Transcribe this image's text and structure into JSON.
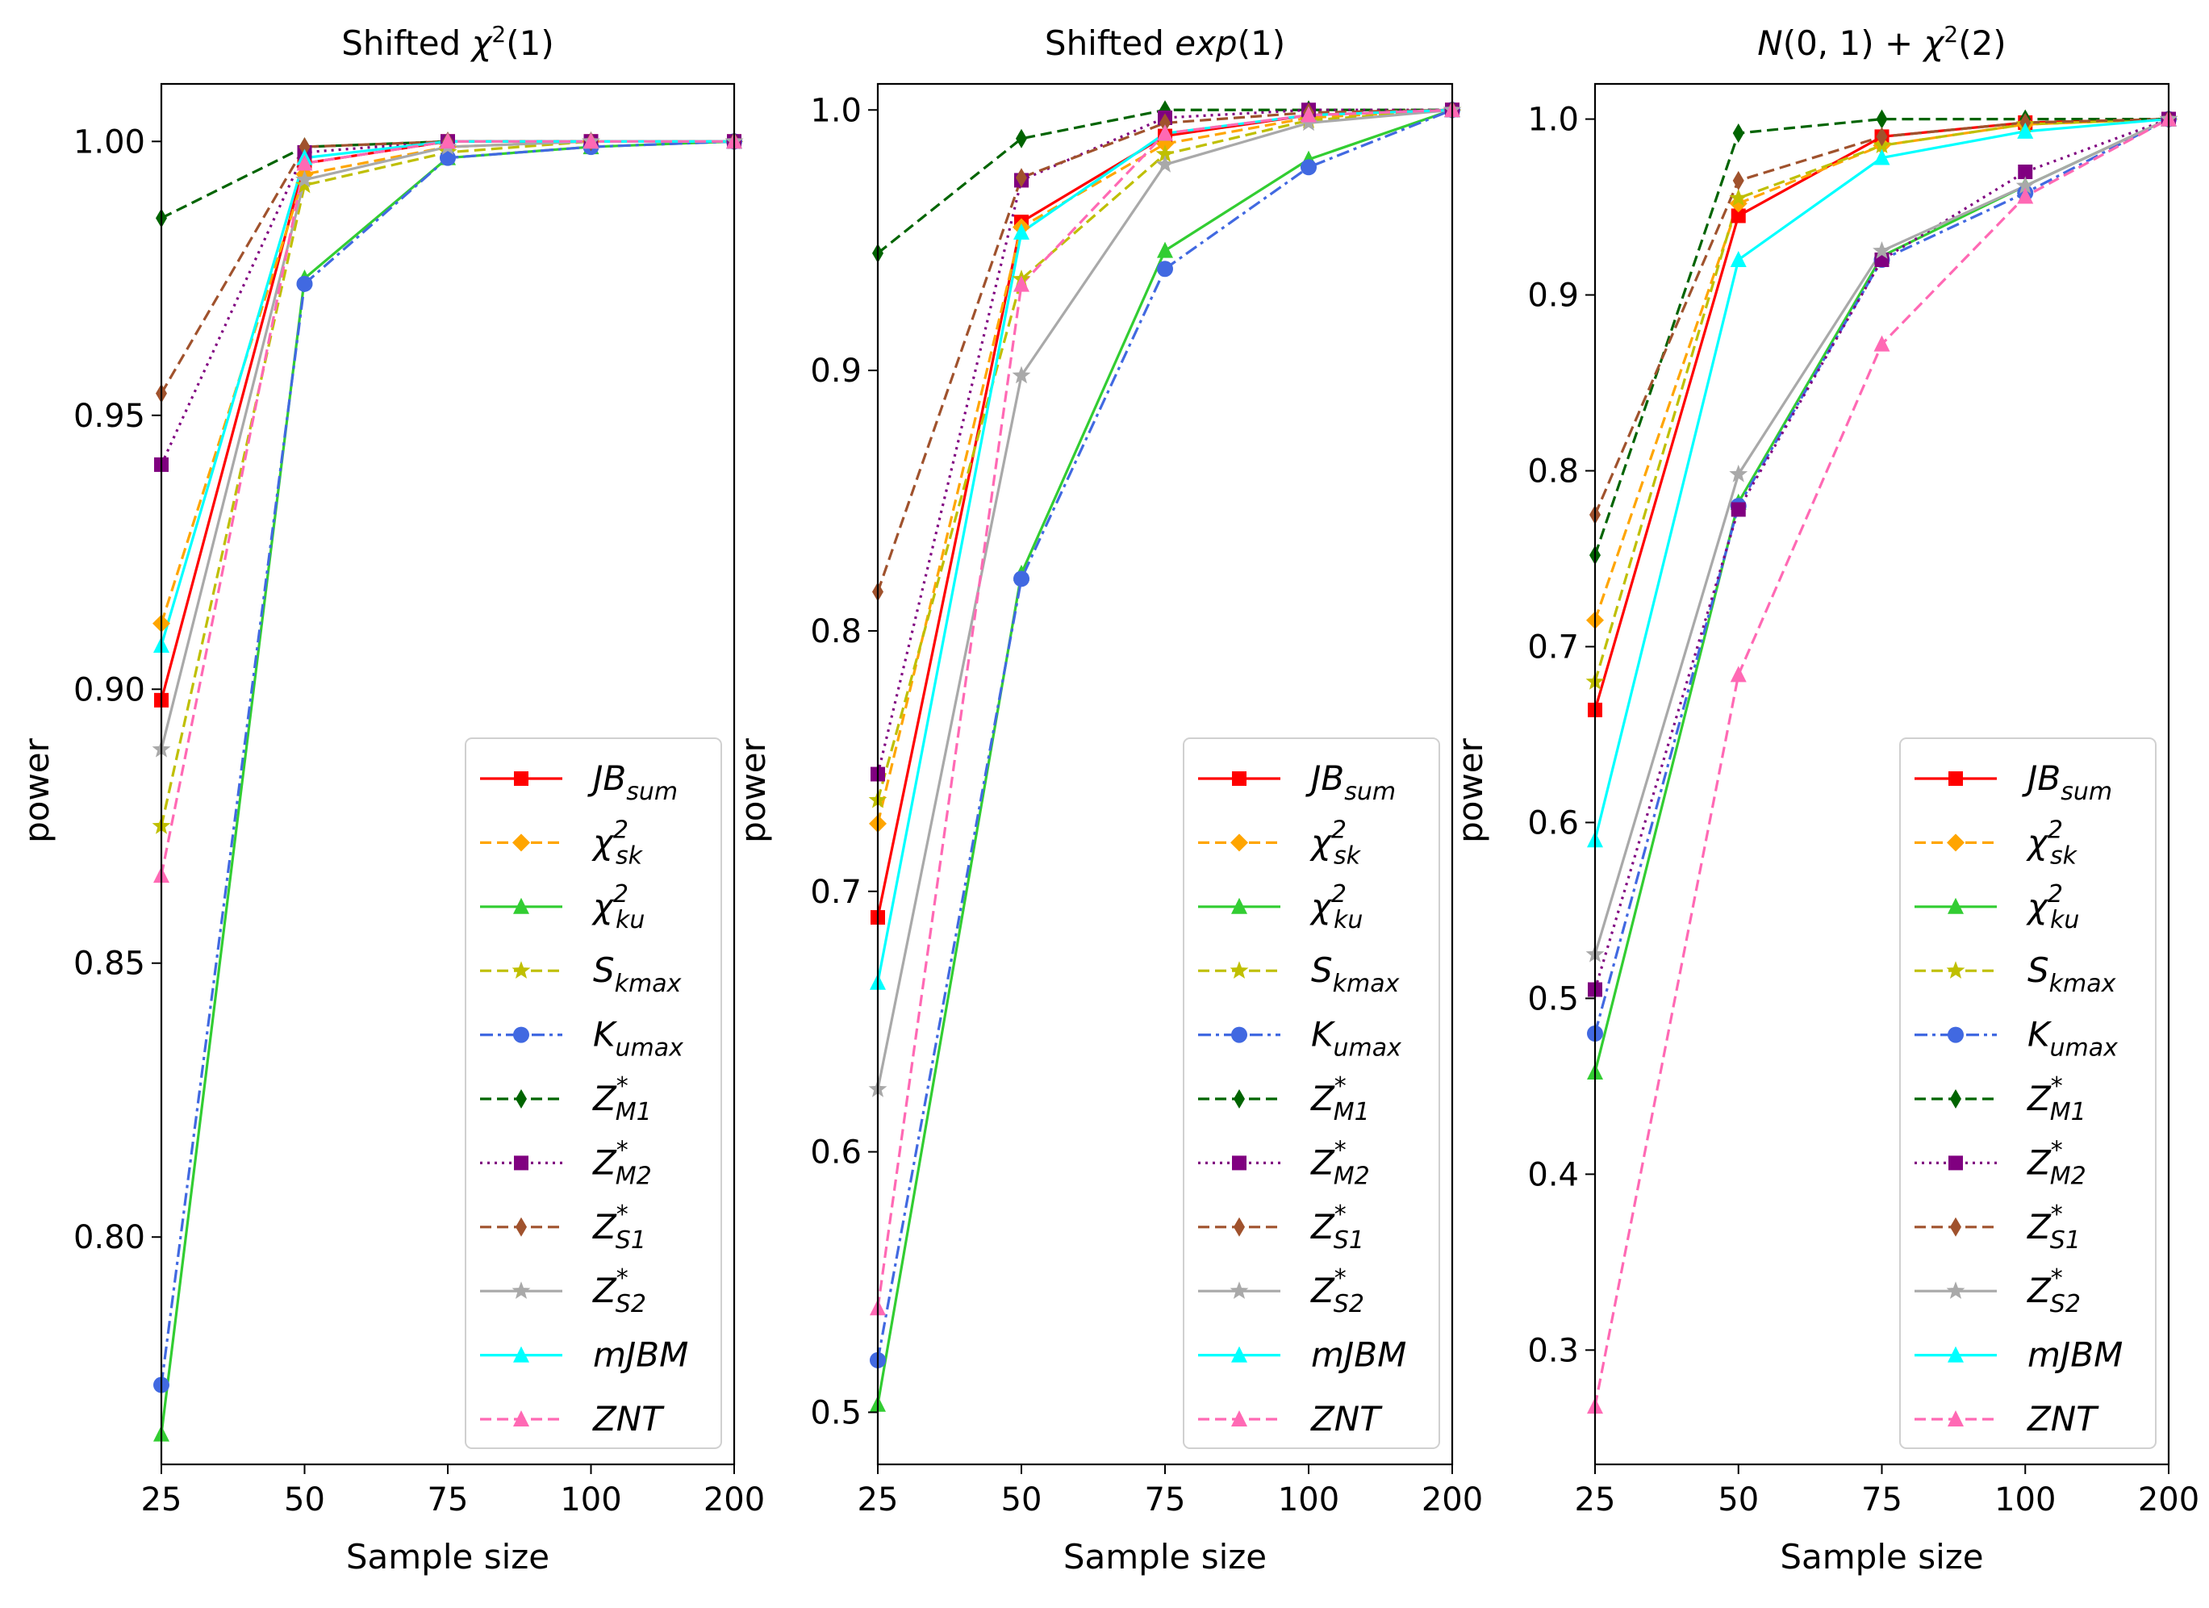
{
  "chart_data": [
    {
      "type": "line",
      "title": "Shifted χ²(1)",
      "title_parts": [
        {
          "t": "Shifted "
        },
        {
          "t": "χ",
          "i": true
        },
        {
          "t": "2",
          "sup": true
        },
        {
          "t": "(1)"
        }
      ],
      "xlabel": "Sample size",
      "ylabel": "power",
      "categories": [
        "25",
        "50",
        "75",
        "100",
        "200"
      ],
      "ylim": [
        0.7585,
        1.0105
      ],
      "yticks": [
        "0.80",
        "0.85",
        "0.90",
        "0.95",
        "1.00"
      ],
      "legend_position": "lower-right",
      "series": [
        {
          "name": "JBsum",
          "values": [
            0.898,
            0.996,
            1.0,
            1.0,
            1.0
          ]
        },
        {
          "name": "χ2sk",
          "values": [
            0.912,
            0.994,
            0.999,
            1.0,
            1.0
          ]
        },
        {
          "name": "χ2ku",
          "values": [
            0.764,
            0.975,
            0.997,
            0.999,
            1.0
          ]
        },
        {
          "name": "Skmax",
          "values": [
            0.875,
            0.992,
            0.998,
            1.0,
            1.0
          ]
        },
        {
          "name": "Kumax",
          "values": [
            0.773,
            0.974,
            0.997,
            0.999,
            1.0
          ]
        },
        {
          "name": "Z*M1",
          "values": [
            0.986,
            0.999,
            1.0,
            1.0,
            1.0
          ]
        },
        {
          "name": "Z*M2",
          "values": [
            0.941,
            0.998,
            1.0,
            1.0,
            1.0
          ]
        },
        {
          "name": "Z*S1",
          "values": [
            0.954,
            0.999,
            1.0,
            1.0,
            1.0
          ]
        },
        {
          "name": "Z*S2",
          "values": [
            0.889,
            0.993,
            0.999,
            1.0,
            1.0
          ]
        },
        {
          "name": "mJBM",
          "values": [
            0.908,
            0.997,
            1.0,
            1.0,
            1.0
          ]
        },
        {
          "name": "ZNT",
          "values": [
            0.866,
            0.996,
            1.0,
            1.0,
            1.0
          ]
        }
      ]
    },
    {
      "type": "line",
      "title": "Shifted exp(1)",
      "title_parts": [
        {
          "t": "Shifted "
        },
        {
          "t": "exp",
          "i": true
        },
        {
          "t": "(1)"
        }
      ],
      "xlabel": "Sample size",
      "ylabel": "power",
      "categories": [
        "25",
        "50",
        "75",
        "100",
        "200"
      ],
      "ylim": [
        0.48,
        1.01
      ],
      "yticks": [
        "0.5",
        "0.6",
        "0.7",
        "0.8",
        "0.9",
        "1.0"
      ],
      "legend_position": "lower-right",
      "series": [
        {
          "name": "JBsum",
          "values": [
            0.69,
            0.957,
            0.99,
            0.998,
            1.0
          ]
        },
        {
          "name": "χ2sk",
          "values": [
            0.726,
            0.955,
            0.987,
            0.997,
            1.0
          ]
        },
        {
          "name": "χ2ku",
          "values": [
            0.503,
            0.822,
            0.946,
            0.981,
            1.0
          ]
        },
        {
          "name": "Skmax",
          "values": [
            0.735,
            0.935,
            0.983,
            0.996,
            1.0
          ]
        },
        {
          "name": "Kumax",
          "values": [
            0.52,
            0.82,
            0.939,
            0.978,
            1.0
          ]
        },
        {
          "name": "Z*M1",
          "values": [
            0.945,
            0.989,
            1.0,
            1.0,
            1.0
          ]
        },
        {
          "name": "Z*M2",
          "values": [
            0.745,
            0.973,
            0.997,
            1.0,
            1.0
          ]
        },
        {
          "name": "Z*S1",
          "values": [
            0.815,
            0.974,
            0.995,
            0.999,
            1.0
          ]
        },
        {
          "name": "Z*S2",
          "values": [
            0.624,
            0.898,
            0.979,
            0.995,
            1.0
          ]
        },
        {
          "name": "mJBM",
          "values": [
            0.665,
            0.953,
            0.991,
            0.998,
            1.0
          ]
        },
        {
          "name": "ZNT",
          "values": [
            0.54,
            0.933,
            0.991,
            0.998,
            1.0
          ]
        }
      ]
    },
    {
      "type": "line",
      "title": "N(0, 1) + χ²(2)",
      "title_parts": [
        {
          "t": "N",
          "i": true
        },
        {
          "t": "(0, 1) + "
        },
        {
          "t": "χ",
          "i": true
        },
        {
          "t": "2",
          "sup": true
        },
        {
          "t": "(2)"
        }
      ],
      "xlabel": "Sample size",
      "ylabel": "power",
      "categories": [
        "25",
        "50",
        "75",
        "100",
        "200"
      ],
      "ylim": [
        0.235,
        1.02
      ],
      "yticks": [
        "0.3",
        "0.4",
        "0.5",
        "0.6",
        "0.7",
        "0.8",
        "0.9",
        "1.0"
      ],
      "legend_position": "lower-right",
      "series": [
        {
          "name": "JBsum",
          "values": [
            0.664,
            0.945,
            0.99,
            0.998,
            1.0
          ]
        },
        {
          "name": "χ2sk",
          "values": [
            0.715,
            0.952,
            0.985,
            0.997,
            1.0
          ]
        },
        {
          "name": "χ2ku",
          "values": [
            0.458,
            0.782,
            0.922,
            0.962,
            1.0
          ]
        },
        {
          "name": "Skmax",
          "values": [
            0.68,
            0.955,
            0.985,
            0.997,
            1.0
          ]
        },
        {
          "name": "Kumax",
          "values": [
            0.48,
            0.78,
            0.92,
            0.958,
            1.0
          ]
        },
        {
          "name": "Z*M1",
          "values": [
            0.752,
            0.992,
            1.0,
            1.0,
            1.0
          ]
        },
        {
          "name": "Z*M2",
          "values": [
            0.505,
            0.778,
            0.92,
            0.97,
            1.0
          ]
        },
        {
          "name": "Z*S1",
          "values": [
            0.775,
            0.965,
            0.99,
            0.998,
            1.0
          ]
        },
        {
          "name": "Z*S2",
          "values": [
            0.525,
            0.798,
            0.925,
            0.962,
            1.0
          ]
        },
        {
          "name": "mJBM",
          "values": [
            0.59,
            0.92,
            0.978,
            0.993,
            1.0
          ]
        },
        {
          "name": "ZNT",
          "values": [
            0.268,
            0.684,
            0.872,
            0.956,
            1.0
          ]
        }
      ]
    }
  ],
  "legend": [
    {
      "main": "JB",
      "sub": "sum",
      "color": "#ff0000",
      "dash": "solid",
      "marker": "square"
    },
    {
      "main": "χ",
      "sup": "2",
      "sub": "sk",
      "color": "#ffa500",
      "dash": "dashed",
      "marker": "diamond"
    },
    {
      "main": "χ",
      "sup": "2",
      "sub": "ku",
      "color": "#32cd32",
      "dash": "solid",
      "marker": "triangle"
    },
    {
      "main": "S",
      "sub": "kmax",
      "color": "#bfbf00",
      "dash": "dashed",
      "marker": "star"
    },
    {
      "main": "K",
      "sub": "umax",
      "color": "#4169e1",
      "dash": "dashdot",
      "marker": "circle"
    },
    {
      "main": "Z",
      "sup": "*",
      "sub": "M1",
      "color": "#006400",
      "dash": "dashed",
      "marker": "thin-diamond"
    },
    {
      "main": "Z",
      "sup": "*",
      "sub": "M2",
      "color": "#800080",
      "dash": "dotted",
      "marker": "square"
    },
    {
      "main": "Z",
      "sup": "*",
      "sub": "S1",
      "color": "#a0522d",
      "dash": "dashed",
      "marker": "thin-diamond"
    },
    {
      "main": "Z",
      "sup": "*",
      "sub": "S2",
      "color": "#a9a9a9",
      "dash": "solid",
      "marker": "star"
    },
    {
      "main": "mJBM",
      "color": "#00ffff",
      "dash": "solid",
      "marker": "triangle"
    },
    {
      "main": "ZNT",
      "color": "#ff69b4",
      "dash": "dashed",
      "marker": "triangle"
    }
  ]
}
